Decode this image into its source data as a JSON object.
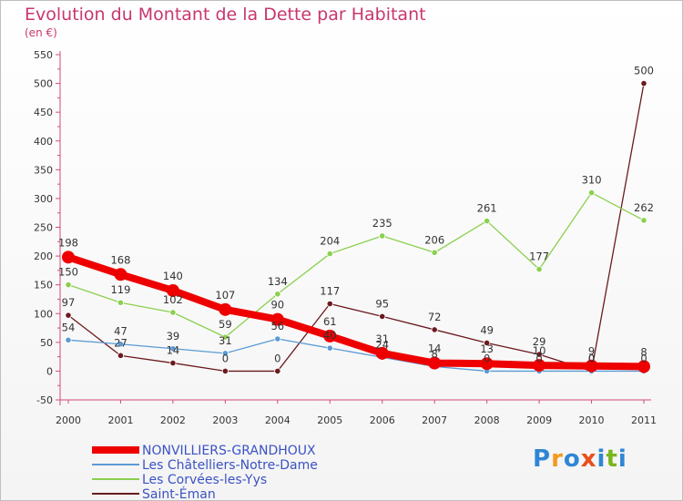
{
  "title": "Evolution du Montant de la Dette par Habitant",
  "unit": "(en €)",
  "logo": {
    "text": "Proxiti",
    "letters": [
      "P",
      "r",
      "o",
      "x",
      "i",
      "t",
      "i"
    ],
    "colors": [
      "#2f86d4",
      "#f29a1f",
      "#2f86d4",
      "#e94f1d",
      "#2f86d4",
      "#7ab51d",
      "#2f86d4"
    ]
  },
  "chart_data": {
    "type": "line",
    "x": [
      "2000",
      "2001",
      "2002",
      "2003",
      "2004",
      "2005",
      "2006",
      "2007",
      "2008",
      "2009",
      "2010",
      "2011"
    ],
    "ylim": [
      -50,
      550
    ],
    "yticks": [
      -50,
      0,
      50,
      100,
      150,
      200,
      250,
      300,
      350,
      400,
      450,
      500,
      550
    ],
    "grid": false,
    "legend_position": "bottom-left",
    "series": [
      {
        "name": "NONVILLIERS-GRANDHOUX",
        "color": "#ee0000",
        "values": [
          198,
          168,
          140,
          107,
          90,
          61,
          31,
          14,
          13,
          10,
          9,
          8
        ]
      },
      {
        "name": "Les Châtelliers-Notre-Dame",
        "color": "#5b9bd5",
        "values": [
          54,
          47,
          39,
          31,
          56,
          40,
          24,
          8,
          0,
          0,
          0,
          0
        ]
      },
      {
        "name": "Les Corvées-les-Yys",
        "color": "#8bd04e",
        "values": [
          150,
          119,
          102,
          59,
          134,
          204,
          235,
          206,
          261,
          177,
          310,
          262
        ]
      },
      {
        "name": "Saint-Éman",
        "color": "#6b1a1f",
        "values": [
          97,
          27,
          14,
          0,
          0,
          117,
          95,
          72,
          49,
          29,
          0,
          500
        ]
      }
    ]
  }
}
